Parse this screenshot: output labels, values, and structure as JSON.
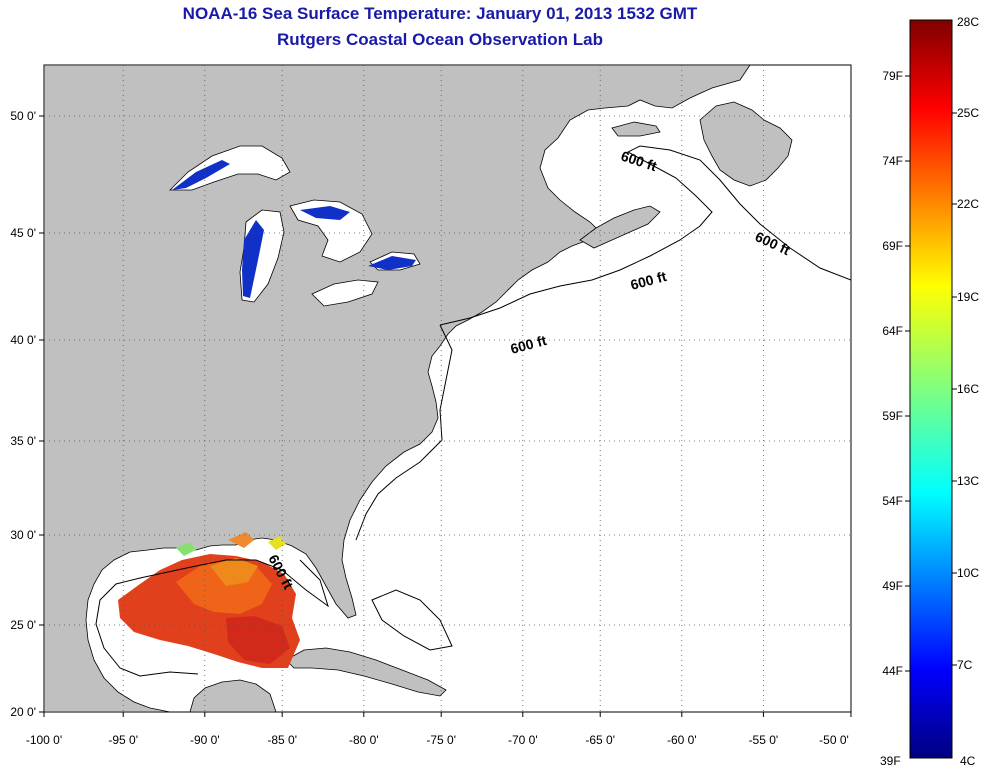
{
  "title": "NOAA-16 Sea Surface Temperature:  January 01, 2013 1532 GMT",
  "subtitle": "Rutgers Coastal Ocean Observation Lab",
  "map": {
    "lon_range": [
      -100,
      -50
    ],
    "lat_range": [
      20,
      52.5
    ],
    "lon_ticks": [
      "-100 0'",
      "-95 0'",
      "-90 0'",
      "-85 0'",
      "-80 0'",
      "-75 0'",
      "-70 0'",
      "-65 0'",
      "-60 0'",
      "-55 0'",
      "-50 0'"
    ],
    "lat_ticks": [
      "20 0'",
      "25 0'",
      "30 0'",
      "35 0'",
      "40 0'",
      "45 0'",
      "50 0'"
    ],
    "isobath_labels": [
      "600 ft",
      "600 ft",
      "600 ft",
      "600 ft",
      "600 ft"
    ],
    "land_color": "#c0c0c0",
    "ocean_color": "#ffffff"
  },
  "colorbar": {
    "celsius": [
      "28C",
      "25C",
      "22C",
      "19C",
      "16C",
      "13C",
      "10C",
      "7C",
      "4C"
    ],
    "fahrenheit": [
      "79F",
      "74F",
      "69F",
      "64F",
      "59F",
      "54F",
      "49F",
      "44F",
      "39F"
    ]
  }
}
